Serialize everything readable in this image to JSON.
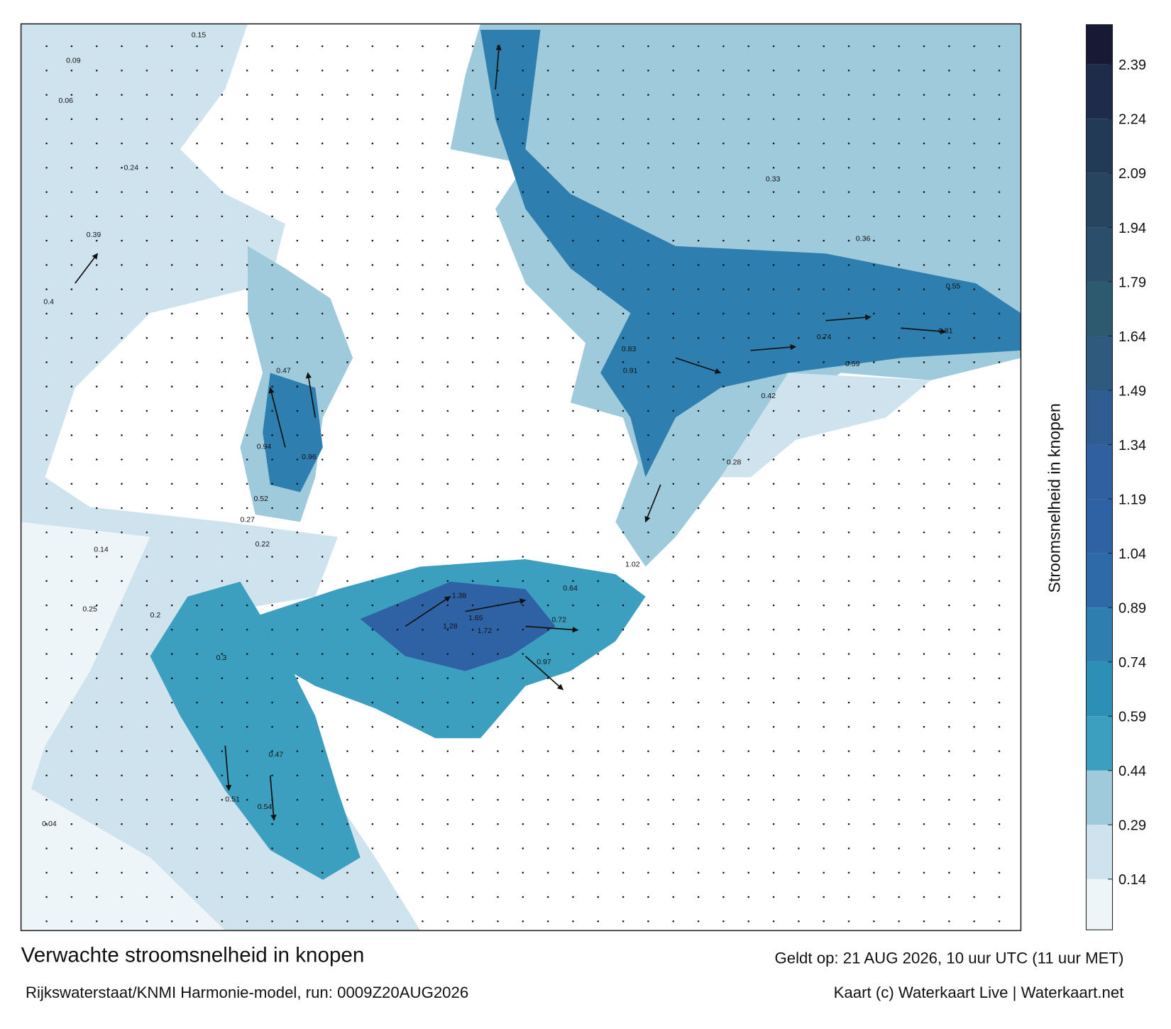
{
  "map": {
    "title": "Verwachte stroomsnelheid in knopen",
    "subtitle": "Rijkswaterstaat/KNMI Harmonie-model, run: 0009Z20AUG2026",
    "valid": "Geldt op: 21 AUG 2026, 10 uur UTC (11 uur MET)",
    "credit": "Kaart (c) Waterkaart Live | Waterkaart.net",
    "colorbar": {
      "label": "Stroomsnelheid in knopen",
      "clim": [
        0,
        2.5
      ],
      "ticks": [
        0.14,
        0.29,
        0.44,
        0.59,
        0.74,
        0.89,
        1.04,
        1.19,
        1.34,
        1.49,
        1.64,
        1.79,
        1.94,
        2.09,
        2.24,
        2.39
      ],
      "colors": [
        "#eef5f9",
        "#cfe3ee",
        "#9fcadc",
        "#3d9fc0",
        "#2c8fb5",
        "#2e7fb0",
        "#2e6aa8",
        "#2f62a5",
        "#30609f",
        "#2f5c91",
        "#2e5a80",
        "#2c5a6f",
        "#2b4f6a",
        "#284560",
        "#223a55",
        "#1e2c4a",
        "#181a35"
      ]
    },
    "labels": [
      "0.15",
      "0.09",
      "0.06",
      "0.24",
      "0.39",
      "0.4",
      "0.47",
      "0.94",
      "0.96",
      "0.52",
      "0.27",
      "0.22",
      "1.38",
      "1.65",
      "1.72",
      "1.28",
      "0.97",
      "0.72",
      "0.64",
      "1.02",
      "0.83",
      "0.91",
      "0.59",
      "0.81",
      "0.74",
      "0.55",
      "0.36",
      "0.33",
      "0.28",
      "0.42",
      "0.51",
      "0.54",
      "0.47",
      "0.3",
      "0.04",
      "0.14",
      "0.2",
      "0.25"
    ]
  }
}
